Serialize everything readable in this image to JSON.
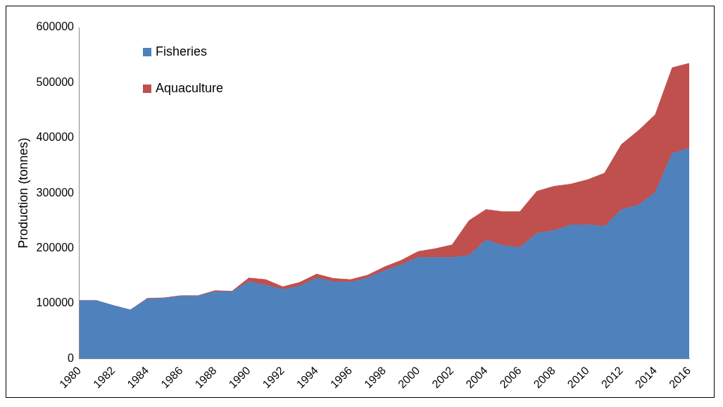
{
  "chart_data": {
    "type": "area",
    "stacked": true,
    "ylabel": "Production (tonnes)",
    "x": [
      1980,
      1981,
      1982,
      1983,
      1984,
      1985,
      1986,
      1987,
      1988,
      1989,
      1990,
      1991,
      1992,
      1993,
      1994,
      1995,
      1996,
      1997,
      1998,
      1999,
      2000,
      2001,
      2002,
      2003,
      2004,
      2005,
      2006,
      2007,
      2008,
      2009,
      2010,
      2011,
      2012,
      2013,
      2014,
      2015,
      2016
    ],
    "xlim": [
      1980,
      2016
    ],
    "xticks": [
      1980,
      1982,
      1984,
      1986,
      1988,
      1990,
      1992,
      1994,
      1996,
      1998,
      2000,
      2002,
      2004,
      2006,
      2008,
      2010,
      2012,
      2014,
      2016
    ],
    "ylim": [
      0,
      600000
    ],
    "yticks": [
      0,
      100000,
      200000,
      300000,
      400000,
      500000,
      600000
    ],
    "legend": "top left",
    "grid": false,
    "series": [
      {
        "name": "Fisheries",
        "color": "#4f81bd",
        "values": [
          105000,
          105000,
          96000,
          88000,
          108000,
          109000,
          113000,
          113000,
          121000,
          121000,
          139000,
          133000,
          125000,
          131000,
          146000,
          139000,
          138000,
          146000,
          159000,
          170000,
          183000,
          183000,
          183000,
          187000,
          215000,
          205000,
          201000,
          227000,
          232000,
          242000,
          242000,
          240000,
          270000,
          278000,
          301000,
          372000,
          381000
        ]
      },
      {
        "name": "Aquaculture",
        "color": "#c0504d",
        "values": [
          0,
          0,
          0,
          0,
          1000,
          1000,
          1000,
          1000,
          2000,
          1000,
          7000,
          10000,
          5000,
          7000,
          7000,
          6000,
          5000,
          5000,
          7000,
          8000,
          11000,
          16000,
          23000,
          63000,
          55000,
          61000,
          65000,
          76000,
          80000,
          74000,
          82000,
          96000,
          118000,
          135000,
          141000,
          155000,
          154000
        ]
      }
    ]
  }
}
